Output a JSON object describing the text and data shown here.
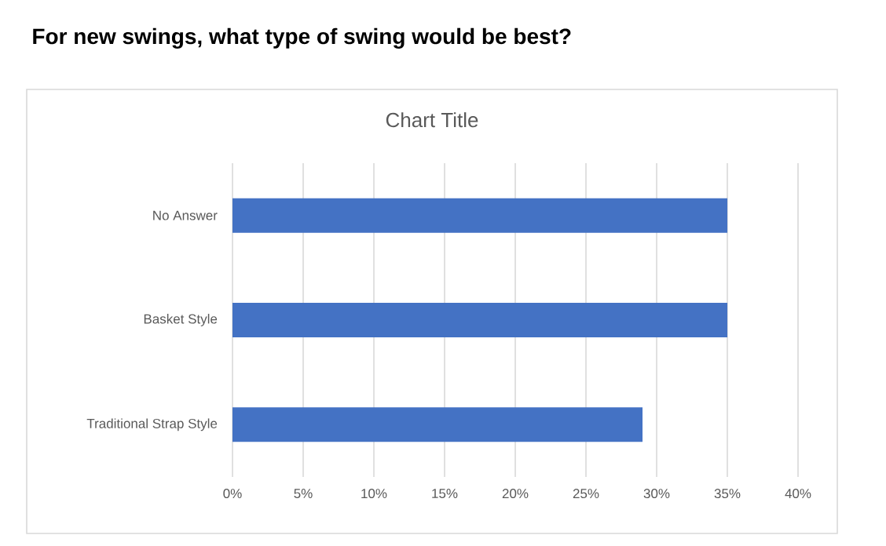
{
  "chart_data": {
    "type": "bar",
    "orientation": "horizontal",
    "title": "For new swings, what type of swing would be best?",
    "subtitle": "Chart Title",
    "categories": [
      "No Answer",
      "Basket Style",
      "Traditional Strap Style"
    ],
    "values": [
      35,
      35,
      29
    ],
    "color": "#4472c4",
    "xlim": [
      0,
      40
    ],
    "xticks": [
      {
        "value": 0,
        "label": "0%"
      },
      {
        "value": 5,
        "label": "5%"
      },
      {
        "value": 10,
        "label": "10%"
      },
      {
        "value": 15,
        "label": "15%"
      },
      {
        "value": 20,
        "label": "20%"
      },
      {
        "value": 25,
        "label": "25%"
      },
      {
        "value": 30,
        "label": "30%"
      },
      {
        "value": 35,
        "label": "35%"
      },
      {
        "value": 40,
        "label": "40%"
      }
    ],
    "grid": "x"
  }
}
